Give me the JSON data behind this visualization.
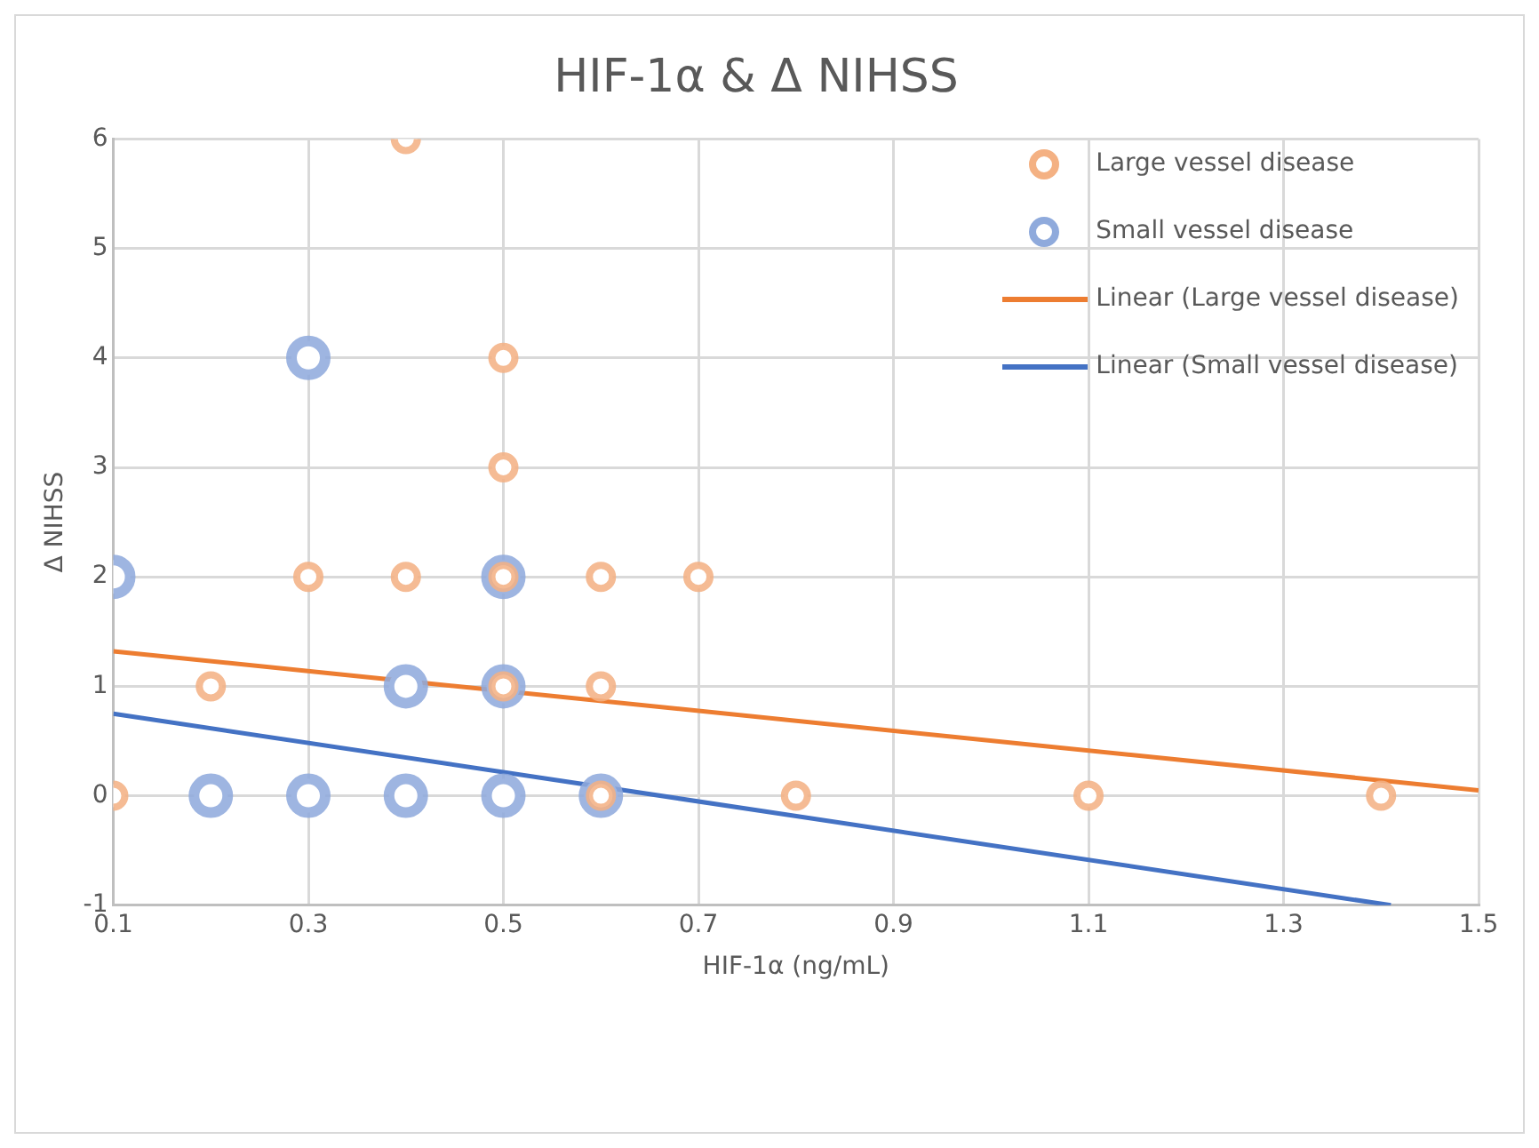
{
  "chart_data": {
    "type": "scatter",
    "title": "HIF-1α & Δ NIHSS",
    "xlabel": "HIF-1α (ng/mL)",
    "ylabel": "Δ NIHSS",
    "xlim": [
      0.1,
      1.5
    ],
    "xticks": [
      0.1,
      0.3,
      0.5,
      0.7,
      0.9,
      1.1,
      1.3,
      1.5
    ],
    "ylim": [
      -1,
      6
    ],
    "yticks": [
      -1,
      0,
      1,
      2,
      3,
      4,
      5,
      6
    ],
    "grid": true,
    "legend": "top right",
    "marker": "circle",
    "series": [
      {
        "name": "Large vessel disease",
        "color": "#f4b183",
        "x": [
          0.1,
          0.2,
          0.3,
          0.4,
          0.4,
          0.5,
          0.5,
          0.5,
          0.5,
          0.6,
          0.6,
          0.6,
          0.7,
          0.8,
          1.1,
          1.4
        ],
        "values": [
          0,
          1,
          2,
          6,
          2,
          4,
          3,
          2,
          1,
          2,
          1,
          0,
          2,
          0,
          0,
          0
        ]
      },
      {
        "name": "Small vessel disease",
        "color": "#8faadc",
        "x": [
          0.1,
          0.2,
          0.3,
          0.3,
          0.4,
          0.4,
          0.5,
          0.5,
          0.5,
          0.6
        ],
        "values": [
          2,
          0,
          4,
          0,
          1,
          0,
          2,
          1,
          0,
          0
        ]
      },
      {
        "name": "Linear (Large vessel disease)",
        "type": "line",
        "marker": "none",
        "color": "#ed7d31",
        "x": [
          0.1,
          1.5
        ],
        "values": [
          1.32,
          0.05
        ]
      },
      {
        "name": "Linear (Small vessel disease)",
        "type": "line",
        "marker": "none",
        "color": "#4472c4",
        "x": [
          0.1,
          1.41
        ],
        "values": [
          0.75,
          -1.0
        ]
      }
    ]
  }
}
